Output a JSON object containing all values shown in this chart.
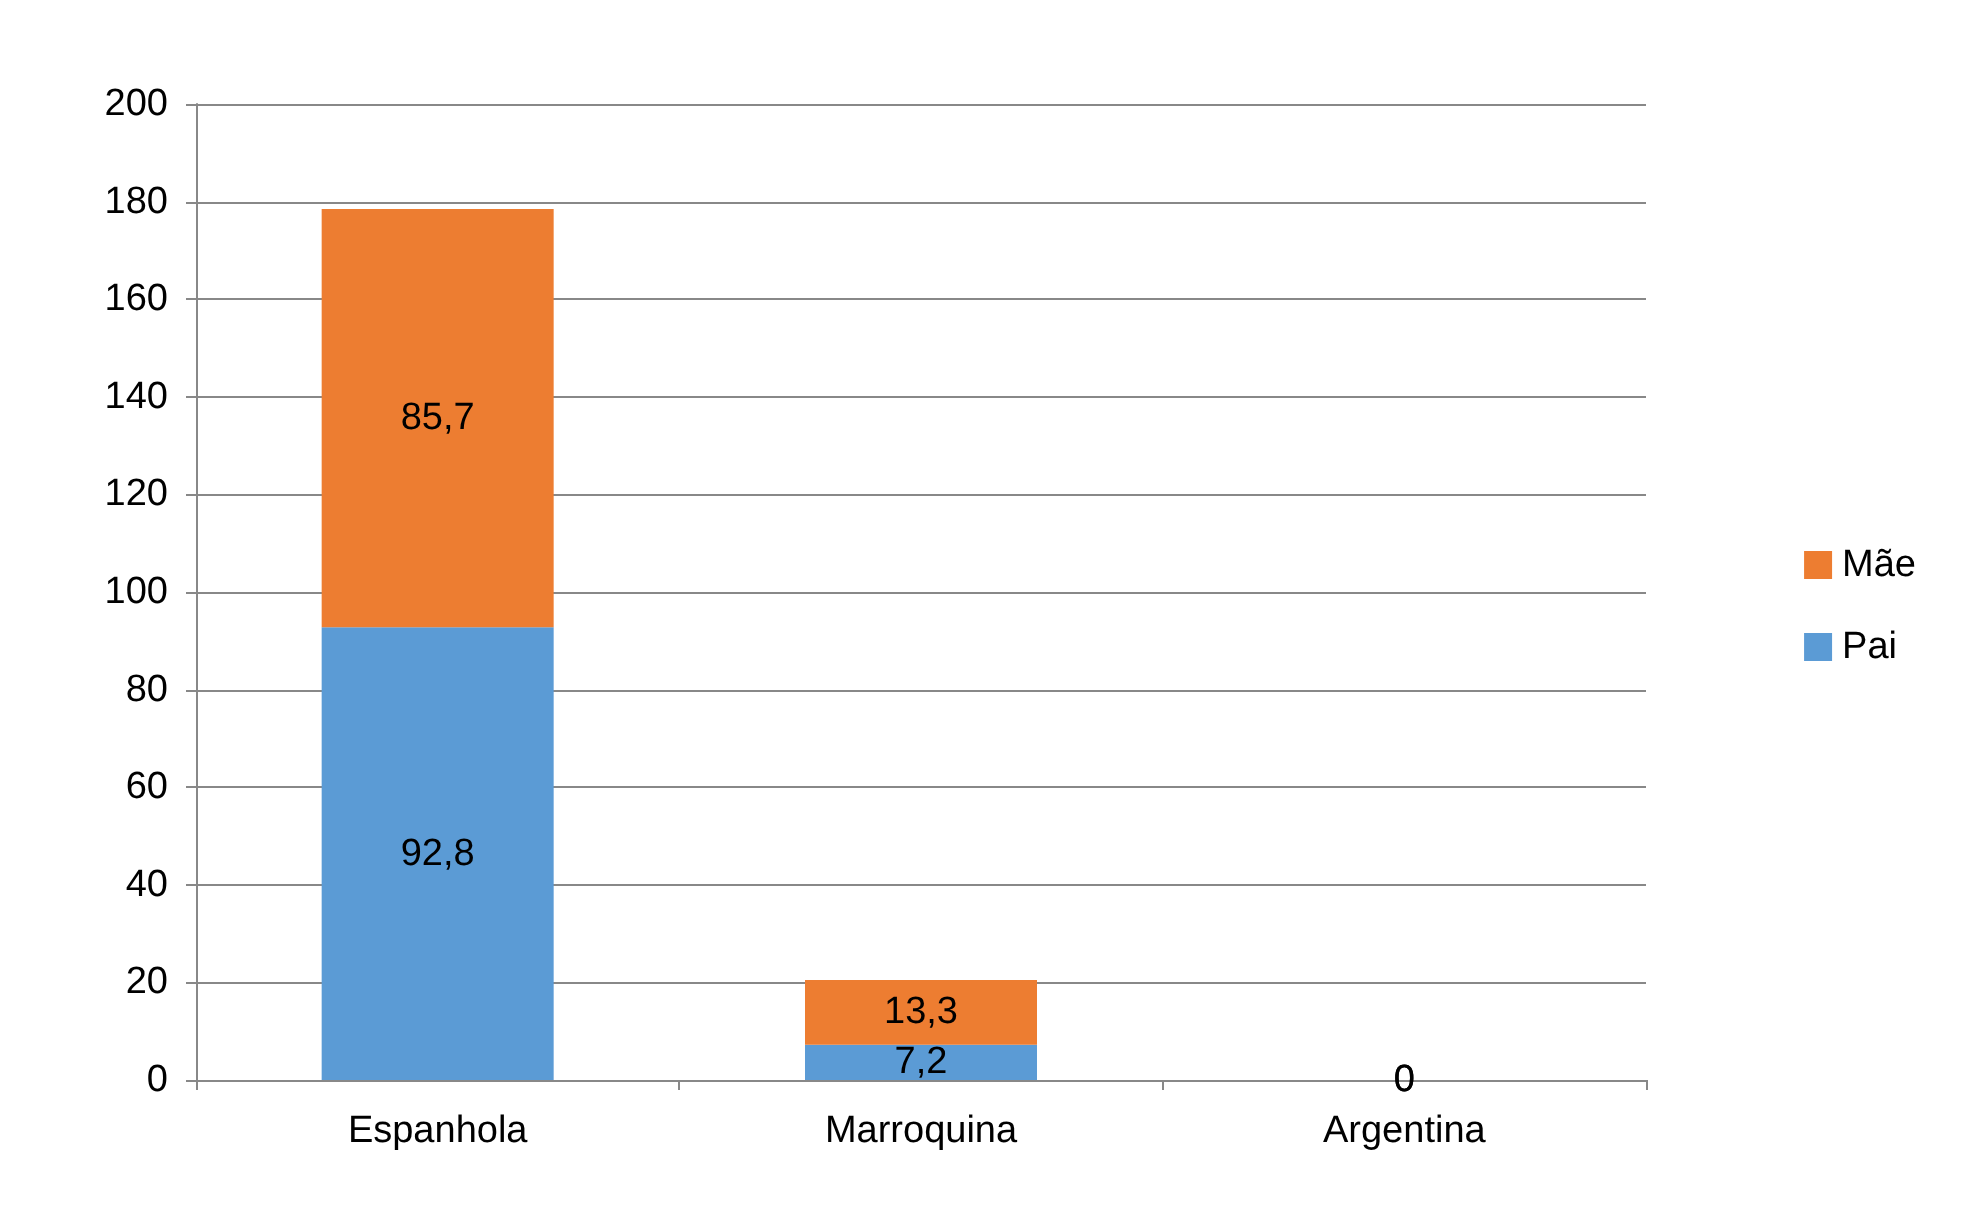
{
  "chart_data": {
    "type": "bar",
    "stacked": true,
    "categories": [
      "Espanhola",
      "Marroquina",
      "Argentina"
    ],
    "series": [
      {
        "name": "Pai",
        "color": "#5b9bd5",
        "values": [
          92.8,
          7.2,
          0
        ],
        "value_labels": [
          "92,8",
          "7,2",
          "0"
        ]
      },
      {
        "name": "Mãe",
        "color": "#ed7d31",
        "values": [
          85.7,
          13.3,
          0
        ],
        "value_labels": [
          "85,7",
          "13,3",
          "0"
        ]
      }
    ],
    "ylim": [
      0,
      200
    ],
    "yticks": [
      0,
      20,
      40,
      60,
      80,
      100,
      120,
      140,
      160,
      180,
      200
    ],
    "grid": "y",
    "legend": "right"
  }
}
